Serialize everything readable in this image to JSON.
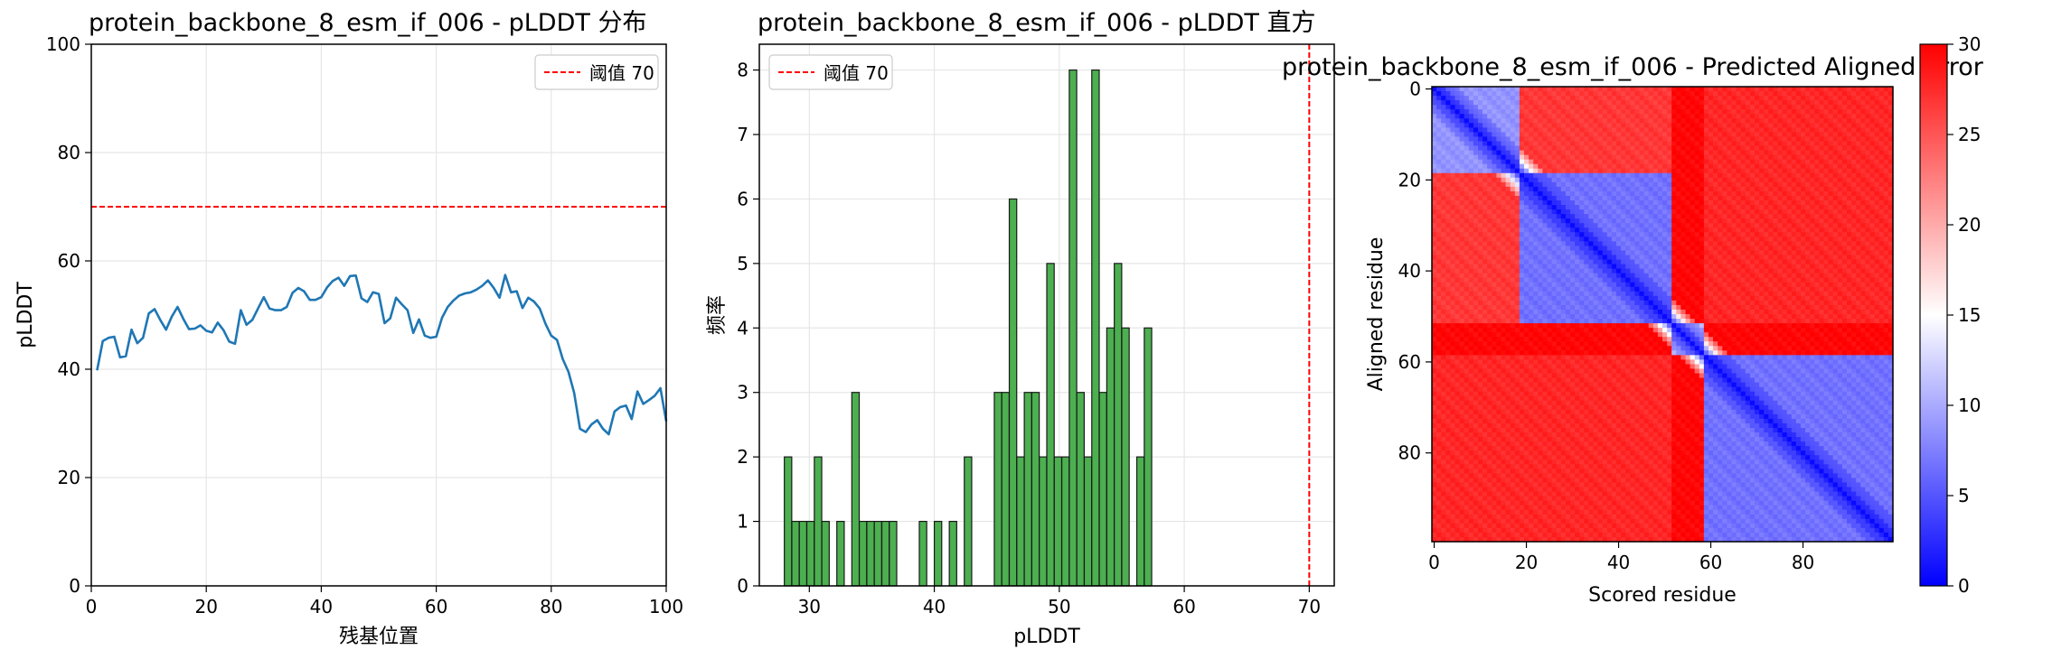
{
  "chart_data": [
    {
      "type": "line",
      "title": "protein_backbone_8_esm_if_006 - pLDDT 分布",
      "xlabel": "残基位置",
      "ylabel": "pLDDT",
      "xlim": [
        0,
        100
      ],
      "ylim": [
        0,
        100
      ],
      "xticks": [
        "0",
        "20",
        "40",
        "60",
        "80",
        "100"
      ],
      "yticks": [
        "0",
        "20",
        "40",
        "60",
        "80",
        "100"
      ],
      "grid": true,
      "legend": {
        "placement": "top-right",
        "entries": [
          "阈值 70"
        ]
      },
      "threshold": 70,
      "series_color": "#1f77b4",
      "threshold_color": "#ff0000",
      "x_start": 1,
      "y": [
        39.8,
        45.2,
        45.8,
        46.0,
        42.2,
        42.4,
        47.3,
        44.8,
        45.8,
        50.3,
        51.1,
        49.1,
        47.3,
        49.7,
        51.5,
        49.3,
        47.4,
        47.5,
        48.1,
        47.1,
        46.8,
        48.6,
        47.2,
        45.1,
        44.7,
        50.9,
        48.2,
        49.1,
        51.2,
        53.3,
        51.2,
        50.9,
        50.9,
        51.5,
        54.1,
        55.0,
        54.4,
        52.8,
        52.8,
        53.3,
        55.1,
        56.3,
        56.9,
        55.4,
        57.2,
        57.3,
        53.1,
        52.4,
        54.2,
        53.9,
        48.5,
        49.4,
        53.2,
        52.0,
        50.9,
        46.7,
        49.2,
        46.2,
        45.8,
        46.0,
        49.5,
        51.5,
        52.7,
        53.6,
        54.0,
        54.2,
        54.7,
        55.4,
        56.4,
        55.0,
        53.2,
        57.4,
        54.2,
        54.4,
        51.3,
        53.2,
        52.5,
        51.2,
        48.4,
        46.2,
        45.4,
        41.9,
        39.5,
        35.6,
        29.0,
        28.4,
        29.8,
        30.6,
        29.0,
        28.0,
        32.2,
        33.0,
        33.3,
        30.8,
        35.9,
        33.6,
        34.3,
        35.1,
        36.5,
        30.4
      ]
    },
    {
      "type": "bar",
      "subtype": "histogram",
      "title": "protein_backbone_8_esm_if_006 - pLDDT 直方",
      "xlabel": "pLDDT",
      "ylabel": "频率",
      "xlim": [
        26,
        72
      ],
      "ylim": [
        0,
        8.4
      ],
      "xticks": [
        "30",
        "40",
        "50",
        "60",
        "70"
      ],
      "yticks": [
        "0",
        "1",
        "2",
        "3",
        "4",
        "5",
        "6",
        "7",
        "8"
      ],
      "grid": true,
      "legend": {
        "placement": "top-left",
        "entries": [
          "阈值 70"
        ]
      },
      "threshold": 70,
      "bar_color": "#4caf50",
      "threshold_color": "#ff0000",
      "bin_width": 0.593,
      "bin_starts": [
        28.0,
        28.6,
        29.2,
        29.8,
        30.4,
        31.0,
        31.6,
        32.2,
        33.4,
        34.0,
        34.6,
        35.2,
        35.8,
        36.4,
        37.0,
        38.8,
        39.4,
        40.0,
        40.6,
        41.2,
        41.8,
        42.4,
        44.8,
        45.4,
        46.0,
        46.6,
        47.2,
        47.8,
        48.4,
        49.0,
        49.6,
        50.2,
        50.8,
        51.4,
        52.0,
        52.6,
        53.2,
        53.8,
        54.4,
        55.0,
        55.6,
        56.2,
        56.8,
        57.4
      ],
      "counts": [
        2,
        1,
        1,
        1,
        2,
        1,
        0,
        1,
        3,
        1,
        1,
        1,
        1,
        1,
        0,
        1,
        0,
        1,
        0,
        1,
        0,
        2,
        3,
        3,
        6,
        2,
        3,
        3,
        2,
        5,
        2,
        2,
        8,
        3,
        2,
        8,
        3,
        4,
        5,
        4,
        0,
        2,
        4,
        0
      ]
    },
    {
      "type": "heatmap",
      "title": "protein_backbone_8_esm_if_006 - Predicted Aligned Error",
      "xlabel": "Scored residue",
      "ylabel": "Aligned residue",
      "size": 100,
      "xticks": [
        "0",
        "20",
        "40",
        "60",
        "80"
      ],
      "yticks": [
        "0",
        "20",
        "40",
        "60",
        "80"
      ],
      "colormap": "bwr",
      "colorbar": {
        "min": 0,
        "max": 30,
        "ticks": [
          "0",
          "5",
          "10",
          "15",
          "20",
          "25",
          "30"
        ]
      },
      "domains": [
        {
          "range": [
            0,
            18
          ],
          "intra": 8,
          "inter": 26
        },
        {
          "range": [
            19,
            51
          ],
          "intra": 6,
          "inter": 22
        },
        {
          "range": [
            52,
            58
          ],
          "intra": 10,
          "inter": 29
        },
        {
          "range": [
            59,
            99
          ],
          "intra": 6,
          "inter": 27
        }
      ],
      "diagonal_error": 0.5
    }
  ]
}
